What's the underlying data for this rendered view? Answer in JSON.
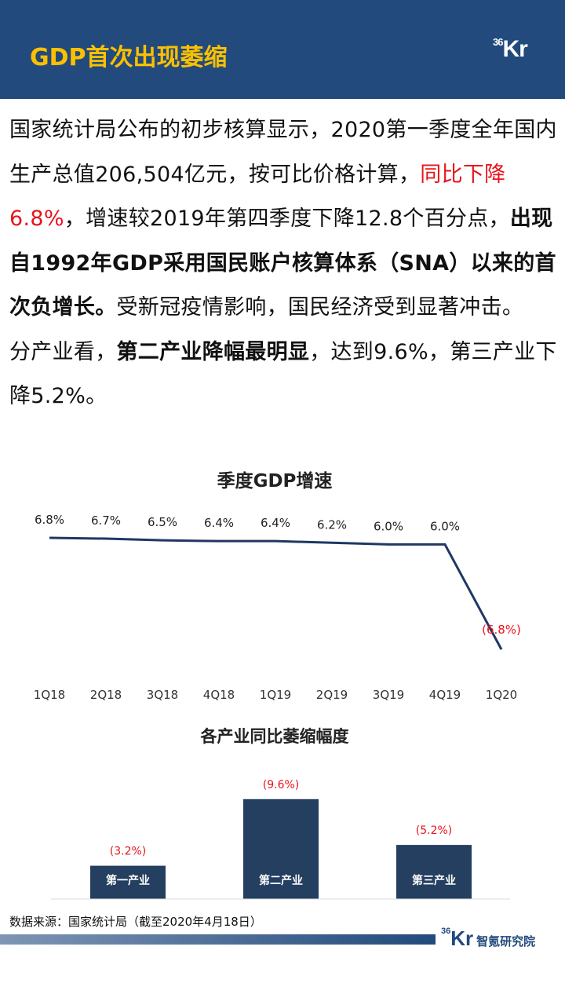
{
  "header": {
    "title": "GDP首次出现萎缩",
    "logo": "36Kr"
  },
  "body": {
    "p1_a": "国家统计局公布的初步核算显示，2020第一季度全年国内生产总值206,504亿元，按可比价格计算，",
    "p1_red": "同比下降6.8%",
    "p1_b": "，增速较2019年第四季度下降12.8个百分点，",
    "p1_bold": "出现自1992年GDP采用国民账户核算体系（SNA）以来的首次负增长。",
    "p1_c": "受新冠疫情影响，国民经济受到显著冲击。",
    "p2_a": "分产业看，",
    "p2_bold": "第二产业降幅最明显",
    "p2_b": "，达到9.6%，第三产业下降5.2%。"
  },
  "chart_data": [
    {
      "type": "line",
      "title": "季度GDP增速",
      "categories": [
        "1Q18",
        "2Q18",
        "3Q18",
        "4Q18",
        "1Q19",
        "2Q19",
        "3Q19",
        "4Q19",
        "1Q20"
      ],
      "values": [
        6.8,
        6.7,
        6.5,
        6.4,
        6.4,
        6.2,
        6.0,
        6.0,
        -6.8
      ],
      "data_labels": [
        "6.8%",
        "6.7%",
        "6.5%",
        "6.4%",
        "6.4%",
        "6.2%",
        "6.0%",
        "6.0%",
        "(6.8%)"
      ],
      "line_color": "#1f3864",
      "negative_label_color": "#e8141b",
      "grid": false
    },
    {
      "type": "bar",
      "title": "各产业同比萎缩幅度",
      "categories": [
        "第一产业",
        "第二产业",
        "第三产业"
      ],
      "values": [
        -3.2,
        -9.6,
        -5.2
      ],
      "data_labels": [
        "(3.2%)",
        "(9.6%)",
        "(5.2%)"
      ],
      "bar_color": "#243f60",
      "label_color": "#e8141b",
      "grid": false
    }
  ],
  "footer": {
    "source": "数据来源：国家统计局（截至2020年4月18日）",
    "logo": "36Kr",
    "institute": "智氪研究院"
  }
}
